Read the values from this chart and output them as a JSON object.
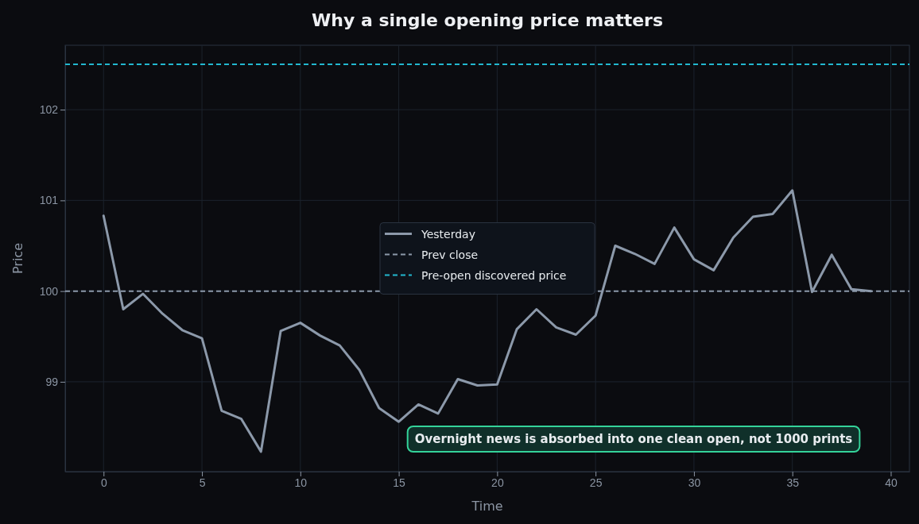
{
  "chart_data": {
    "type": "line",
    "title": "Why a single opening price matters",
    "xlabel": "Time",
    "ylabel": "Price",
    "x": [
      0,
      1,
      2,
      3,
      4,
      5,
      6,
      7,
      8,
      9,
      10,
      11,
      12,
      13,
      14,
      15,
      16,
      17,
      18,
      19,
      20,
      21,
      22,
      23,
      24,
      25,
      26,
      27,
      28,
      29,
      30,
      31,
      32,
      33,
      34,
      35,
      36,
      37,
      38,
      39
    ],
    "series": [
      {
        "name": "Yesterday",
        "color": "#8c99aa",
        "values": [
          100.83,
          99.8,
          99.97,
          99.75,
          99.57,
          99.48,
          98.68,
          98.59,
          98.23,
          99.56,
          99.65,
          99.51,
          99.4,
          99.13,
          98.71,
          98.56,
          98.75,
          98.65,
          99.03,
          98.96,
          98.97,
          99.58,
          99.8,
          99.6,
          99.52,
          99.73,
          100.5,
          100.41,
          100.3,
          100.7,
          100.35,
          100.23,
          100.59,
          100.82,
          100.85,
          101.11,
          99.99,
          100.4,
          100.02,
          100.0
        ]
      }
    ],
    "ref_lines": [
      {
        "axis": "y",
        "value": 100,
        "label": "Prev close",
        "color": "#8c99aa",
        "line_style": "dashed"
      },
      {
        "axis": "y",
        "value": 102.5,
        "label": "Pre-open discovered price",
        "color": "#22b8cf",
        "line_style": "dashed"
      }
    ],
    "annotations": [
      "Overnight news is absorbed into one clean open, not 1000 prints"
    ],
    "xlim": [
      -1.95,
      40.95
    ],
    "ylim": [
      98.01,
      102.71
    ],
    "xticks": [
      0,
      5,
      10,
      15,
      20,
      25,
      30,
      35,
      40
    ],
    "yticks": [
      99,
      100,
      101,
      102
    ],
    "grid": true,
    "legend": "center",
    "line_style": "solid",
    "marker": "none"
  }
}
